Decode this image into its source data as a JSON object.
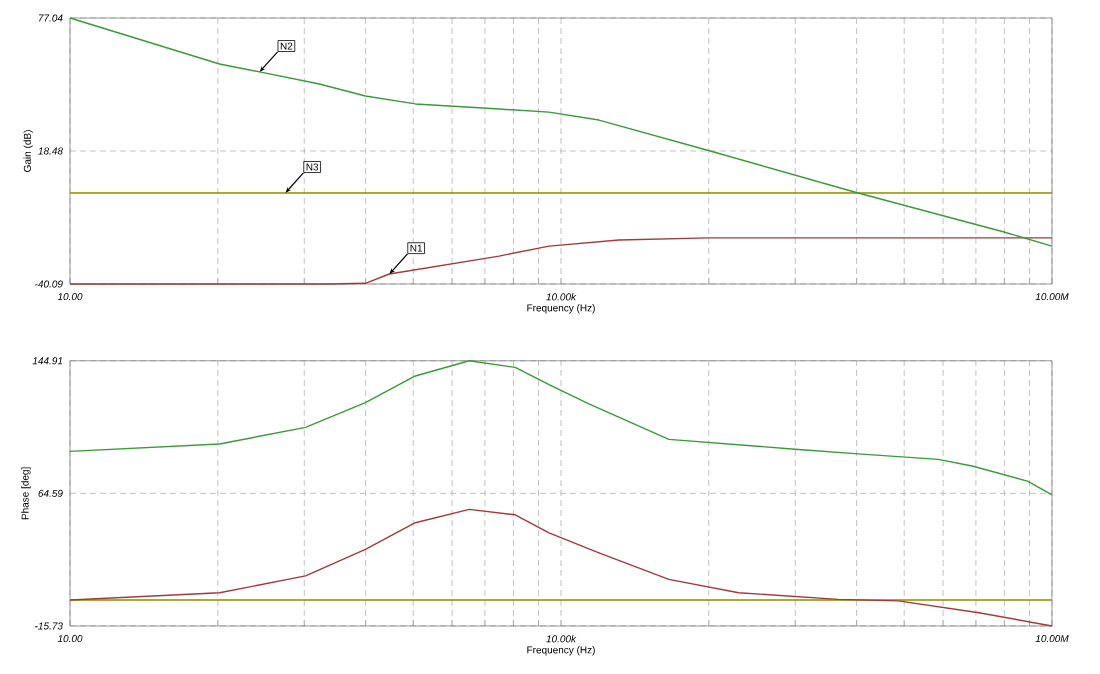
{
  "chart_data": [
    {
      "type": "line",
      "xlabel": "Frequency (Hz)",
      "ylabel": "Gain (dB)",
      "log": "x",
      "grid": true,
      "xlim": [
        10,
        10000000
      ],
      "ylim": [
        -40.09,
        77.04
      ],
      "xticks": [
        {
          "value": 10,
          "label": "10.00"
        },
        {
          "value": 80,
          "label": null
        },
        {
          "value": 270,
          "label": null
        },
        {
          "value": 640,
          "label": null
        },
        {
          "value": 1250,
          "label": null
        },
        {
          "value": 2160,
          "label": null
        },
        {
          "value": 3430,
          "label": null
        },
        {
          "value": 5120,
          "label": null
        },
        {
          "value": 7290,
          "label": null
        },
        {
          "value": 10000,
          "label": "10.00k"
        },
        {
          "value": 80000,
          "label": null
        },
        {
          "value": 270000,
          "label": null
        },
        {
          "value": 640000,
          "label": null
        },
        {
          "value": 1250000,
          "label": null
        },
        {
          "value": 2160000,
          "label": null
        },
        {
          "value": 3430000,
          "label": null
        },
        {
          "value": 5120000,
          "label": null
        },
        {
          "value": 7290000,
          "label": null
        },
        {
          "value": 10000000,
          "label": "10.00M"
        }
      ],
      "yticks": [
        -40.09,
        18.48,
        77.04
      ],
      "series": [
        {
          "color": "#8c8c00",
          "x": [
            10,
            10000000
          ],
          "values": [
            0,
            0
          ]
        },
        {
          "color": "#a33a3a",
          "x": [
            10,
            385,
            638,
            894,
            4190,
            8450,
            22600,
            79800,
            10000000
          ],
          "values": [
            -40.09,
            -40.09,
            -39.8,
            -35.7,
            -27.8,
            -23.4,
            -20.7,
            -19.8,
            -19.8
          ]
        },
        {
          "color": "#3a9a3a",
          "x": [
            10,
            82,
            144,
            334,
            638,
            1288,
            3342,
            8450,
            17060,
            77600,
            621000,
            5090000,
            10000000
          ],
          "values": [
            77.04,
            56.8,
            53.3,
            48.0,
            42.7,
            39.2,
            37.4,
            35.6,
            32.1,
            18.9,
            0.4,
            -17.2,
            -23.4
          ]
        }
      ],
      "annotations": [
        {
          "text": "N2",
          "x": 144,
          "y": 53.3
        },
        {
          "text": "N3",
          "x": 207,
          "y": 0
        },
        {
          "text": "N1",
          "x": 894,
          "y": -35.7
        }
      ]
    },
    {
      "type": "line",
      "xlabel": "Frequency (Hz)",
      "ylabel": "Phase [deg]",
      "log": "x",
      "grid": true,
      "xlim": [
        10,
        10000000
      ],
      "ylim": [
        -15.73,
        144.91
      ],
      "xticks": [
        {
          "value": 10,
          "label": "10.00"
        },
        {
          "value": 80,
          "label": null
        },
        {
          "value": 270,
          "label": null
        },
        {
          "value": 640,
          "label": null
        },
        {
          "value": 1250,
          "label": null
        },
        {
          "value": 2160,
          "label": null
        },
        {
          "value": 3430,
          "label": null
        },
        {
          "value": 5120,
          "label": null
        },
        {
          "value": 7290,
          "label": null
        },
        {
          "value": 10000,
          "label": "10.00k"
        },
        {
          "value": 80000,
          "label": null
        },
        {
          "value": 270000,
          "label": null
        },
        {
          "value": 640000,
          "label": null
        },
        {
          "value": 1250000,
          "label": null
        },
        {
          "value": 2160000,
          "label": null
        },
        {
          "value": 3430000,
          "label": null
        },
        {
          "value": 5120000,
          "label": null
        },
        {
          "value": 7290000,
          "label": null
        },
        {
          "value": 10000000,
          "label": "10.00M"
        }
      ],
      "yticks": [
        -15.73,
        64.59,
        144.91
      ],
      "series": [
        {
          "color": "#8c8c00",
          "x": [
            10,
            10000000
          ],
          "values": [
            0,
            0
          ]
        },
        {
          "color": "#a33a3a",
          "x": [
            10,
            82,
            275,
            638,
            1288,
            2750,
            5250,
            8450,
            17060,
            45600,
            121700,
            495000,
            1150000,
            3580000,
            10000000
          ],
          "values": [
            0,
            4.4,
            14.6,
            30.7,
            46.8,
            54.9,
            51.6,
            40.7,
            28.6,
            12.5,
            4.4,
            0.4,
            -0.5,
            -7.7,
            -15.73
          ]
        },
        {
          "color": "#3a9a3a",
          "x": [
            10,
            82,
            275,
            638,
            1288,
            2750,
            5250,
            8450,
            14800,
            45600,
            282000,
            656000,
            2020000,
            3250000,
            7140000,
            10000000
          ],
          "values": [
            90.0,
            94.5,
            104.6,
            119.5,
            135.7,
            144.91,
            140.9,
            130.4,
            118.8,
            97.3,
            91.2,
            88.5,
            85.2,
            81.2,
            71.9,
            63.7
          ]
        }
      ]
    }
  ]
}
